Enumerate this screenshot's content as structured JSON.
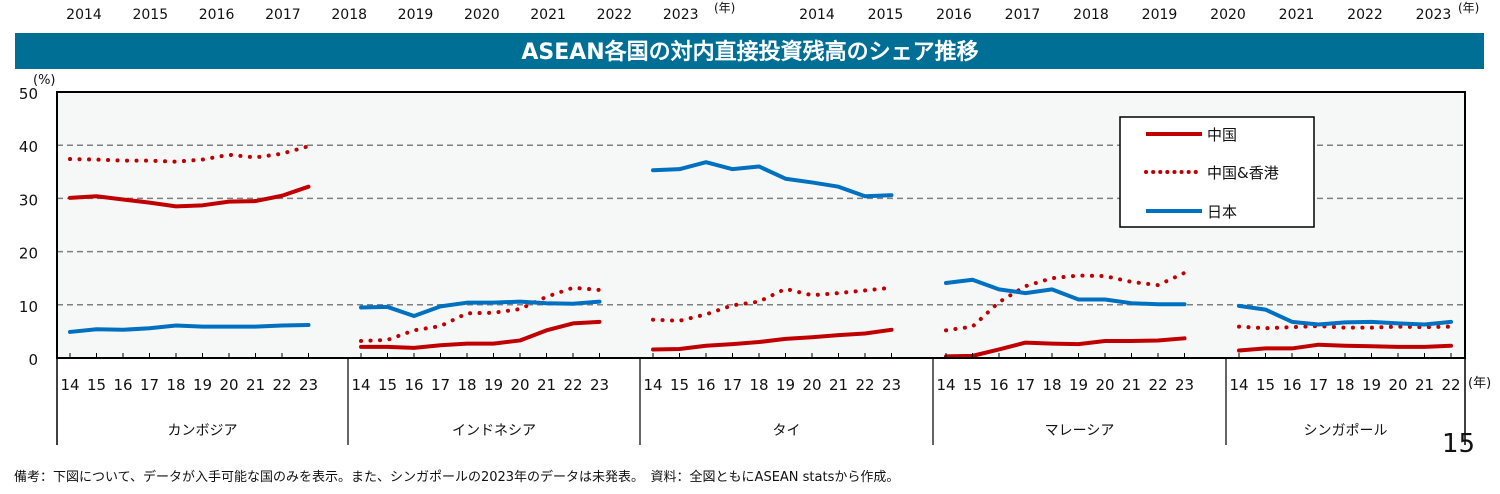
{
  "top_years_left": [
    "2014",
    "2015",
    "2016",
    "2017",
    "2018",
    "2019",
    "2020",
    "2021",
    "2022",
    "2023"
  ],
  "top_years_right": [
    "2014",
    "2015",
    "2016",
    "2017",
    "2018",
    "2019",
    "2020",
    "2021",
    "2022",
    "2023"
  ],
  "year_unit": "(年)",
  "page_number": "15",
  "footnote": "備考：下図について、データが入手可能な国のみを表示。また、シンガポールの2023年のデータは未発表。　資料：全図ともにASEAN statsから作成。",
  "chart_data": {
    "type": "line",
    "title": "ASEAN各国の対内直接投資残高のシェア推移",
    "ylabel": "(%)",
    "xlabel": "(年)",
    "ylim": [
      0,
      50
    ],
    "yticks": [
      "0",
      "10",
      "20",
      "30",
      "40",
      "50"
    ],
    "grid": true,
    "legend_position": "top-right",
    "series_styles": [
      {
        "name": "中国",
        "color": "#c00000",
        "style": "solid"
      },
      {
        "name": "中国&香港",
        "color": "#c00000",
        "style": "dotted"
      },
      {
        "name": "日本",
        "color": "#0070c0",
        "style": "solid"
      }
    ],
    "panels": [
      {
        "country": "カンボジア",
        "years": [
          "14",
          "15",
          "16",
          "17",
          "18",
          "19",
          "20",
          "21",
          "22",
          "23"
        ],
        "series": [
          {
            "name": "中国",
            "values": [
              30.1,
              30.4,
              29.8,
              29.2,
              28.5,
              28.7,
              29.4,
              29.5,
              30.5,
              32.2
            ]
          },
          {
            "name": "中国&香港",
            "values": [
              37.4,
              37.3,
              37.1,
              37.1,
              36.9,
              37.3,
              38.2,
              37.7,
              38.4,
              39.8
            ]
          },
          {
            "name": "日本",
            "values": [
              4.9,
              5.4,
              5.3,
              5.6,
              6.1,
              5.9,
              5.9,
              5.9,
              6.1,
              6.2
            ]
          }
        ]
      },
      {
        "country": "インドネシア",
        "years": [
          "14",
          "15",
          "16",
          "17",
          "18",
          "19",
          "20",
          "21",
          "22",
          "23"
        ],
        "series": [
          {
            "name": "中国",
            "values": [
              2.1,
              2.1,
              1.9,
              2.4,
              2.7,
              2.7,
              3.3,
              5.2,
              6.5,
              6.8
            ]
          },
          {
            "name": "中国&香港",
            "values": [
              3.2,
              3.4,
              5.2,
              6.0,
              8.4,
              8.5,
              9.2,
              11.5,
              13.2,
              12.8
            ]
          },
          {
            "name": "日本",
            "values": [
              9.5,
              9.6,
              7.9,
              9.7,
              10.4,
              10.4,
              10.6,
              10.3,
              10.2,
              10.6
            ]
          }
        ]
      },
      {
        "country": "タイ",
        "years": [
          "14",
          "15",
          "16",
          "17",
          "18",
          "19",
          "20",
          "21",
          "22",
          "23"
        ],
        "series": [
          {
            "name": "中国",
            "values": [
              1.6,
              1.7,
              2.3,
              2.6,
              3.0,
              3.6,
              3.9,
              4.3,
              4.6,
              5.3
            ]
          },
          {
            "name": "中国&香港",
            "values": [
              7.2,
              7.0,
              8.2,
              9.9,
              10.6,
              13.0,
              11.8,
              12.2,
              12.7,
              13.2
            ]
          },
          {
            "name": "日本",
            "values": [
              35.3,
              35.5,
              36.8,
              35.5,
              36.0,
              33.7,
              33.0,
              32.2,
              30.4,
              30.6
            ]
          }
        ]
      },
      {
        "country": "マレーシア",
        "years": [
          "14",
          "15",
          "16",
          "17",
          "18",
          "19",
          "20",
          "21",
          "22",
          "23"
        ],
        "series": [
          {
            "name": "中国",
            "values": [
              0.3,
              0.4,
              1.6,
              2.9,
              2.7,
              2.6,
              3.2,
              3.2,
              3.3,
              3.7
            ]
          },
          {
            "name": "中国&香港",
            "values": [
              5.2,
              5.9,
              10.5,
              13.5,
              15.0,
              15.5,
              15.4,
              14.3,
              13.7,
              16.0
            ]
          },
          {
            "name": "日本",
            "values": [
              14.1,
              14.7,
              12.9,
              12.2,
              12.9,
              11.0,
              11.0,
              10.3,
              10.1,
              10.1
            ]
          }
        ]
      },
      {
        "country": "シンガポール",
        "years": [
          "14",
          "15",
          "16",
          "17",
          "18",
          "19",
          "20",
          "21",
          "22"
        ],
        "series": [
          {
            "name": "中国",
            "values": [
              1.4,
              1.8,
              1.8,
              2.5,
              2.3,
              2.2,
              2.1,
              2.1,
              2.3
            ]
          },
          {
            "name": "中国&香港",
            "values": [
              5.9,
              5.6,
              5.8,
              6.0,
              5.7,
              5.7,
              5.9,
              5.8,
              5.9
            ]
          },
          {
            "name": "日本",
            "values": [
              9.8,
              9.1,
              6.8,
              6.3,
              6.7,
              6.8,
              6.5,
              6.3,
              6.8
            ]
          }
        ]
      }
    ]
  }
}
